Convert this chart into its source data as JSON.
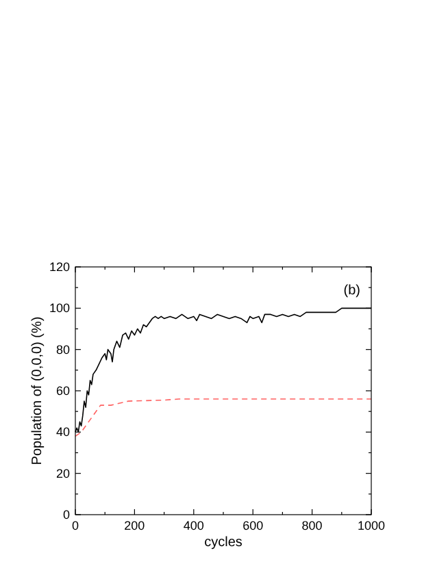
{
  "chart_data": {
    "type": "line",
    "xlabel": "cycles",
    "ylabel": "Population of (0,0,0) (%)",
    "annotations": [
      "(b)"
    ],
    "xlim": [
      0,
      1000
    ],
    "ylim": [
      0,
      120
    ],
    "xticks": [
      0,
      200,
      400,
      600,
      800,
      1000
    ],
    "yticks": [
      0,
      20,
      40,
      60,
      80,
      100,
      120
    ],
    "series": [
      {
        "color": "#000000",
        "line_style": "solid",
        "x": [
          0,
          5,
          10,
          15,
          20,
          25,
          30,
          35,
          40,
          45,
          50,
          55,
          60,
          70,
          80,
          90,
          100,
          105,
          110,
          120,
          125,
          130,
          140,
          150,
          160,
          170,
          180,
          190,
          200,
          210,
          220,
          230,
          240,
          250,
          260,
          270,
          280,
          290,
          300,
          320,
          340,
          360,
          380,
          400,
          410,
          420,
          440,
          460,
          480,
          500,
          520,
          540,
          560,
          580,
          590,
          600,
          620,
          630,
          640,
          660,
          680,
          700,
          720,
          740,
          760,
          780,
          800,
          850,
          880,
          900,
          1000
        ],
        "values": [
          40,
          42,
          40,
          45,
          43,
          48,
          55,
          52,
          60,
          58,
          65,
          63,
          68,
          70,
          73,
          76,
          78,
          75,
          80,
          78,
          74,
          80,
          84,
          81,
          87,
          88,
          85,
          89,
          87,
          90,
          88,
          92,
          91,
          93,
          95,
          96,
          95,
          96,
          95,
          96,
          95,
          97,
          95,
          96,
          94,
          97,
          96,
          95,
          97,
          96,
          95,
          96,
          95,
          93,
          96,
          95,
          96,
          93,
          97,
          97,
          96,
          97,
          96,
          97,
          96,
          98,
          98,
          98,
          98,
          100,
          100
        ]
      },
      {
        "color": "#ff6060",
        "line_style": "dashed",
        "x": [
          0,
          20,
          40,
          60,
          85,
          120,
          180,
          300,
          350,
          1000
        ],
        "values": [
          38,
          40,
          44,
          48,
          53,
          53,
          55,
          55.5,
          56,
          56
        ]
      }
    ]
  }
}
